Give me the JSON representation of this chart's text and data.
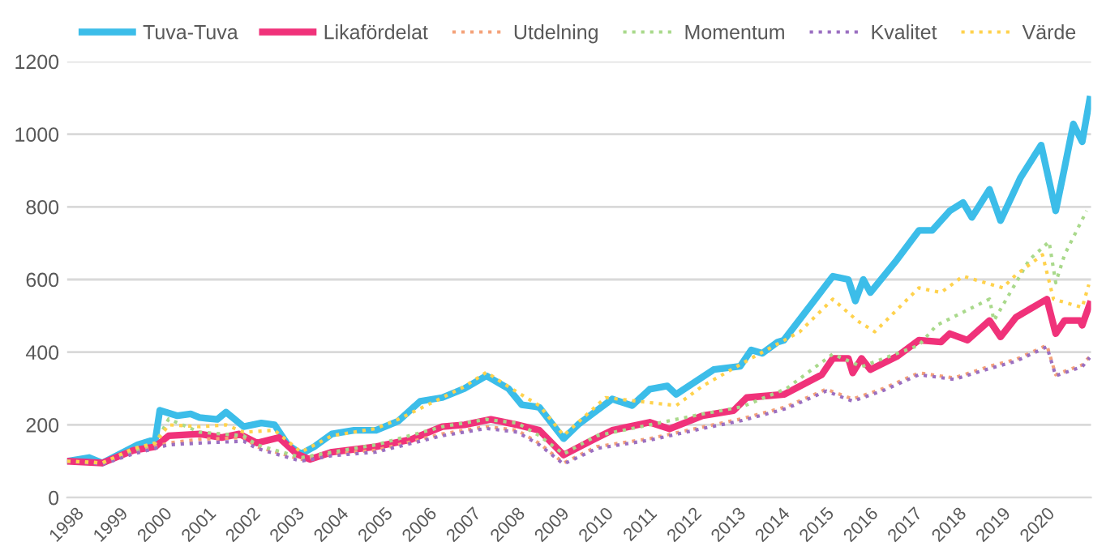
{
  "chart_data": {
    "type": "line",
    "xlim": [
      1998,
      2021.2
    ],
    "xticks": [
      1998,
      1999,
      2000,
      2001,
      2002,
      2003,
      2004,
      2005,
      2006,
      2007,
      2008,
      2009,
      2010,
      2011,
      2012,
      2013,
      2014,
      2015,
      2016,
      2017,
      2018,
      2019,
      2020
    ],
    "ylim": [
      0,
      1200
    ],
    "yticks": [
      0,
      200,
      400,
      600,
      800,
      1000,
      1200
    ],
    "grid": "y",
    "legend": "top",
    "marker": "none",
    "series": [
      {
        "name": "Tuva-Tuva",
        "color": "#3cbde9",
        "line_style": "solid",
        "x": [
          1998,
          1998.5,
          1998.8,
          1999.2,
          1999.6,
          2000.0,
          2000.1,
          2000.5,
          2000.8,
          2001.0,
          2001.4,
          2001.6,
          2002.0,
          2002.4,
          2002.7,
          2003.0,
          2003.3,
          2003.6,
          2004.0,
          2004.5,
          2005.0,
          2005.5,
          2006.0,
          2006.5,
          2007.0,
          2007.5,
          2008.0,
          2008.3,
          2008.6,
          2008.7,
          2009.25,
          2009.6,
          2010.35,
          2010.8,
          2011.2,
          2011.6,
          2011.8,
          2012.65,
          2013.25,
          2013.5,
          2013.75,
          2014.1,
          2014.24,
          2015.35,
          2015.7,
          2015.86,
          2016.04,
          2016.2,
          2016.8,
          2017.3,
          2017.6,
          2018.0,
          2018.3,
          2018.5,
          2018.9,
          2019.15,
          2019.6,
          2020.07,
          2020.4,
          2020.6,
          2020.8,
          2021.0,
          2021.17
        ],
        "values": [
          100,
          110,
          95,
          120,
          145,
          160,
          240,
          225,
          230,
          220,
          215,
          235,
          195,
          205,
          200,
          145,
          120,
          140,
          175,
          185,
          185,
          210,
          265,
          275,
          300,
          335,
          300,
          255,
          250,
          248,
          162,
          203,
          271,
          253,
          298,
          307,
          284,
          352,
          361,
          406,
          397,
          428,
          433,
          609,
          600,
          541,
          600,
          564,
          654,
          735,
          735,
          789,
          812,
          771,
          848,
          762,
          880,
          970,
          789,
          907,
          1028,
          979,
          1096
        ]
      },
      {
        "name": "Likafördelat",
        "color": "#f0327a",
        "line_style": "solid",
        "x": [
          1998,
          1998.8,
          1999.5,
          2000.0,
          2000.3,
          2001.0,
          2001.5,
          2001.9,
          2002.3,
          2002.8,
          2003.2,
          2003.5,
          2004.0,
          2005.0,
          2005.8,
          2006.5,
          2007.0,
          2007.6,
          2008.2,
          2008.7,
          2009.25,
          2009.9,
          2010.35,
          2011.2,
          2011.65,
          2012.4,
          2013.1,
          2013.4,
          2014.25,
          2015.1,
          2015.35,
          2015.7,
          2015.8,
          2016.0,
          2016.2,
          2016.8,
          2017.3,
          2017.8,
          2018.0,
          2018.4,
          2018.9,
          2019.15,
          2019.5,
          2020.2,
          2020.4,
          2020.6,
          2020.95,
          2021.0,
          2021.17
        ],
        "values": [
          100,
          95,
          130,
          140,
          170,
          175,
          165,
          175,
          150,
          165,
          120,
          105,
          125,
          140,
          160,
          195,
          200,
          215,
          200,
          185,
          117,
          158,
          185,
          207,
          189,
          225,
          239,
          275,
          284,
          338,
          383,
          383,
          343,
          383,
          352,
          388,
          433,
          428,
          451,
          433,
          487,
          442,
          496,
          546,
          451,
          487,
          487,
          474,
          532
        ]
      },
      {
        "name": "Utdelning",
        "color": "#f4a27a",
        "line_style": "dotted",
        "x": [
          1998,
          1998.8,
          1999.5,
          2000.3,
          2001.0,
          2002.0,
          2002.3,
          2003.3,
          2004.0,
          2005.0,
          2006.5,
          2007.5,
          2008.2,
          2008.7,
          2009.25,
          2010.0,
          2011.2,
          2012.4,
          2013.3,
          2014.3,
          2015.2,
          2015.8,
          2016.5,
          2017.3,
          2018.1,
          2018.9,
          2019.5,
          2020.2,
          2020.4,
          2021.0,
          2021.17
        ],
        "values": [
          100,
          95,
          125,
          150,
          160,
          165,
          140,
          105,
          120,
          130,
          175,
          195,
          185,
          149,
          95,
          140,
          162,
          194,
          217,
          250,
          298,
          271,
          300,
          343,
          329,
          361,
          380,
          419,
          338,
          365,
          388
        ]
      },
      {
        "name": "Momentum",
        "color": "#a9d98b",
        "line_style": "dotted",
        "x": [
          1998,
          1998.8,
          1999.5,
          2000.0,
          2000.3,
          2001.0,
          2002.0,
          2002.3,
          2003.3,
          2004.0,
          2005.0,
          2006.5,
          2007.5,
          2008.2,
          2008.7,
          2009.25,
          2010.0,
          2011.2,
          2012.4,
          2013.3,
          2014.3,
          2015.35,
          2016.0,
          2017.3,
          2017.7,
          2018.9,
          2019.0,
          2019.8,
          2020.25,
          2020.4,
          2020.6,
          2021.1
        ],
        "values": [
          100,
          95,
          130,
          150,
          216,
          180,
          170,
          145,
          110,
          125,
          145,
          195,
          215,
          205,
          170,
          120,
          170,
          200,
          230,
          250,
          300,
          395,
          360,
          419,
          474,
          546,
          487,
          654,
          704,
          591,
          668,
          789
        ]
      },
      {
        "name": "Kvalitet",
        "color": "#9b6fc1",
        "line_style": "dotted",
        "x": [
          1998,
          1998.8,
          1999.5,
          2000.3,
          2001.0,
          2002.0,
          2002.3,
          2003.3,
          2004.0,
          2005.0,
          2006.5,
          2007.5,
          2008.2,
          2008.7,
          2009.25,
          2010.0,
          2011.2,
          2012.4,
          2013.3,
          2014.3,
          2015.2,
          2015.8,
          2016.5,
          2017.3,
          2018.1,
          2018.9,
          2019.5,
          2020.2,
          2020.4,
          2021.0,
          2021.17
        ],
        "values": [
          100,
          92,
          120,
          145,
          150,
          155,
          135,
          100,
          115,
          125,
          170,
          190,
          180,
          145,
          92,
          135,
          158,
          190,
          212,
          245,
          293,
          265,
          295,
          338,
          325,
          355,
          375,
          415,
          335,
          360,
          385
        ]
      },
      {
        "name": "Värde",
        "color": "#ffd24d",
        "line_style": "dotted",
        "x": [
          1998,
          1998.8,
          1999.5,
          2000.0,
          2000.3,
          2001.0,
          2001.6,
          2002.0,
          2002.7,
          2003.3,
          2004.0,
          2005.0,
          2005.5,
          2006.5,
          2007.0,
          2007.5,
          2008.0,
          2008.7,
          2009.25,
          2010.2,
          2011.8,
          2012.4,
          2013.5,
          2014.6,
          2015.35,
          2015.9,
          2016.3,
          2017.3,
          2017.8,
          2018.3,
          2019.2,
          2019.5,
          2020.1,
          2020.35,
          2021.0,
          2021.15
        ],
        "values": [
          100,
          95,
          135,
          150,
          200,
          195,
          200,
          180,
          185,
          125,
          170,
          190,
          215,
          275,
          305,
          345,
          305,
          253,
          171,
          275,
          253,
          307,
          383,
          456,
          546,
          487,
          456,
          577,
          564,
          609,
          577,
          613,
          668,
          546,
          523,
          586
        ]
      }
    ]
  }
}
